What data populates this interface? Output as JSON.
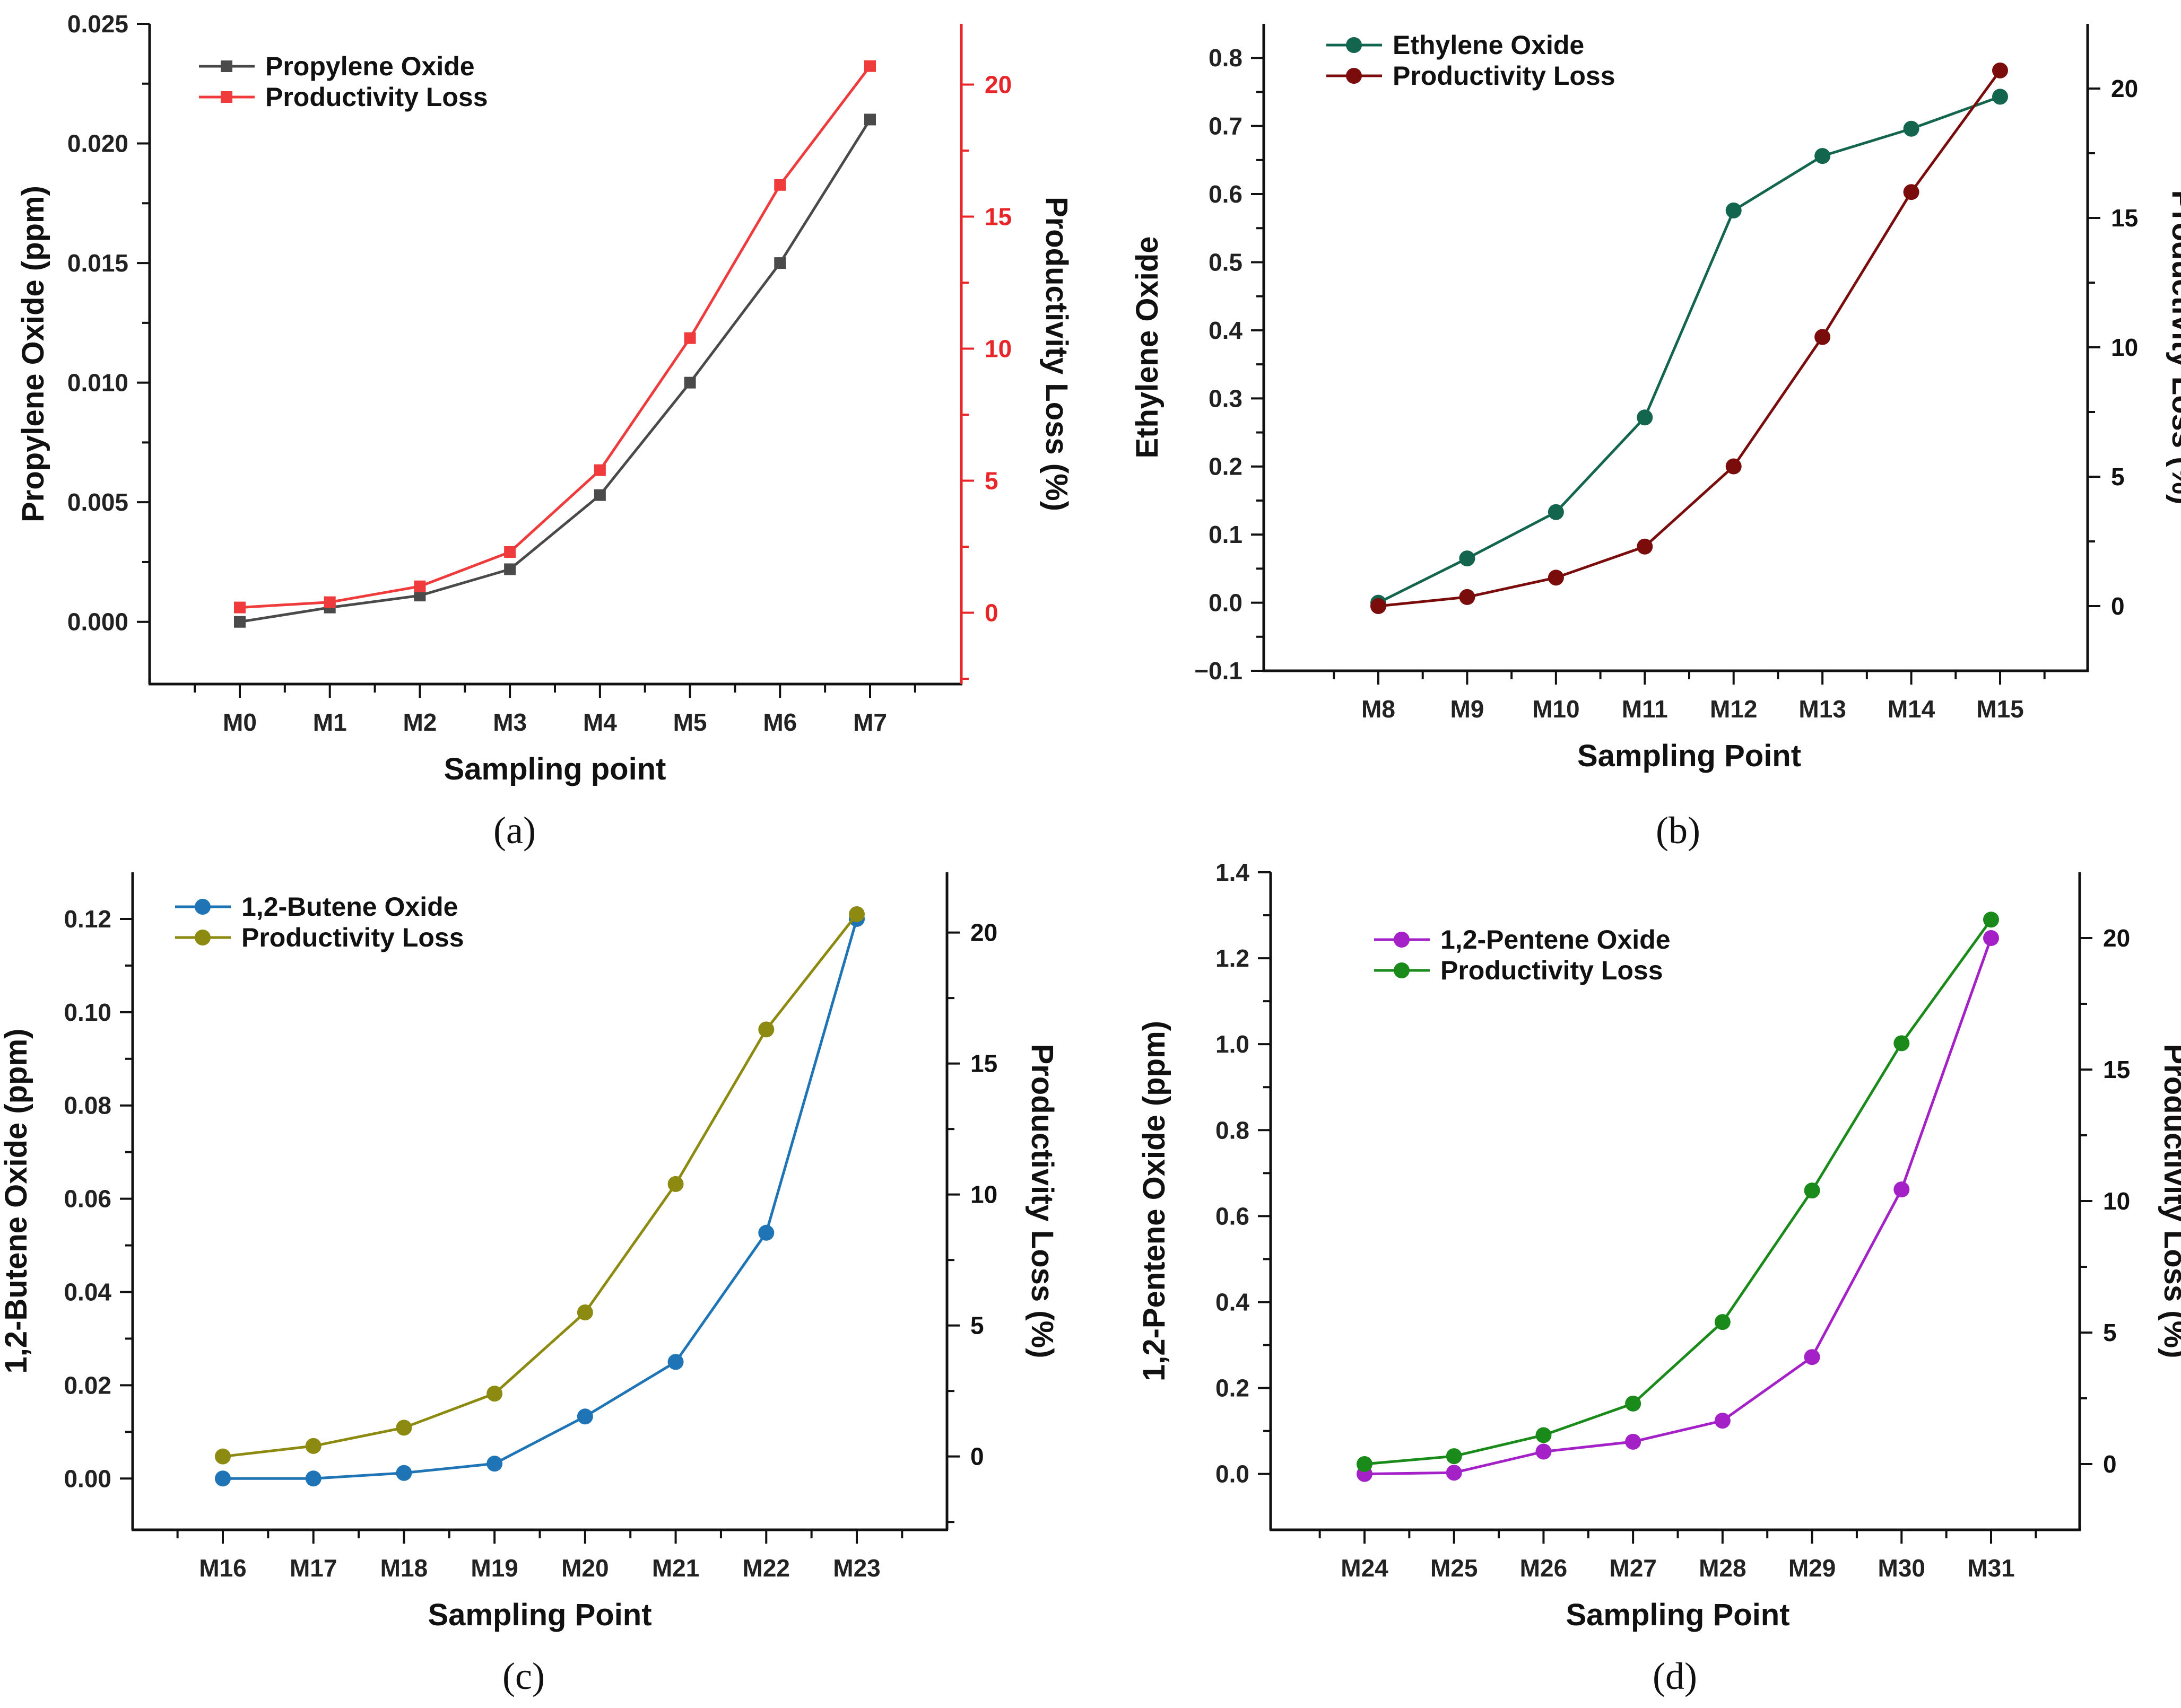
{
  "chart_data": [
    {
      "id": "a",
      "type": "line",
      "caption": "(a)",
      "xlabel": "Sampling point",
      "ylabel": "Propylene Oxide (ppm)",
      "y2label": "Productivity Loss (%)",
      "categories": [
        "M0",
        "M1",
        "M2",
        "M3",
        "M4",
        "M5",
        "M6",
        "M7"
      ],
      "ylim": [
        -0.0026,
        0.025
      ],
      "yticks": [
        0.0,
        0.005,
        0.01,
        0.015,
        0.02,
        0.025
      ],
      "ytick_labels": [
        "0.000",
        "0.005",
        "0.010",
        "0.015",
        "0.020",
        "0.025"
      ],
      "y2lim": [
        -2.7,
        22.3
      ],
      "y2ticks": [
        0,
        5,
        10,
        15,
        20
      ],
      "y2tick_labels": [
        "0",
        "5",
        "10",
        "15",
        "20"
      ],
      "right_axis_color": "#e8262a",
      "grid": false,
      "legend_position": "top-left",
      "marker": "square",
      "series": [
        {
          "name": "Propylene Oxide",
          "axis": "left",
          "color": "#4a4a4a",
          "values": [
            0.0,
            0.0006,
            0.0011,
            0.0022,
            0.0053,
            0.01,
            0.015,
            0.021
          ]
        },
        {
          "name": "Productivity Loss",
          "axis": "right",
          "color": "#ef3b3b",
          "values": [
            0.2,
            0.4,
            1.0,
            2.3,
            5.4,
            10.4,
            16.2,
            20.7
          ]
        }
      ]
    },
    {
      "id": "b",
      "type": "line",
      "caption": "(b)",
      "xlabel": "Sampling Point",
      "ylabel": "Ethylene Oxide",
      "y2label": "Productivity Loss (%)",
      "categories": [
        "M8",
        "M9",
        "M10",
        "M11",
        "M12",
        "M13",
        "M14",
        "M15"
      ],
      "ylim": [
        -0.1,
        0.85
      ],
      "yticks": [
        -0.1,
        0.0,
        0.1,
        0.2,
        0.3,
        0.4,
        0.5,
        0.6,
        0.7,
        0.8
      ],
      "ytick_labels": [
        "−0.1",
        "0.0",
        "0.1",
        "0.2",
        "0.3",
        "0.4",
        "0.5",
        "0.6",
        "0.7",
        "0.8"
      ],
      "y2lim": [
        -2.5,
        22.5
      ],
      "y2ticks": [
        0,
        5,
        10,
        15,
        20
      ],
      "y2tick_labels": [
        "0",
        "5",
        "10",
        "15",
        "20"
      ],
      "right_axis_color": "#111111",
      "grid": false,
      "legend_position": "top-left",
      "marker": "circle",
      "series": [
        {
          "name": "Ethylene Oxide",
          "axis": "left",
          "color": "#13664d",
          "values": [
            0.0,
            0.065,
            0.133,
            0.272,
            0.576,
            0.656,
            0.696,
            0.743
          ]
        },
        {
          "name": "Productivity Loss",
          "axis": "right",
          "color": "#7a0c0c",
          "values": [
            0.0,
            0.35,
            1.1,
            2.3,
            5.4,
            10.4,
            16.0,
            20.7
          ]
        }
      ]
    },
    {
      "id": "c",
      "type": "line",
      "caption": "(c)",
      "xlabel": "Sampling Point",
      "ylabel": "1,2-Butene Oxide (ppm)",
      "y2label": "Productivity Loss (%)",
      "categories": [
        "M16",
        "M17",
        "M18",
        "M19",
        "M20",
        "M21",
        "M22",
        "M23"
      ],
      "ylim": [
        -0.011,
        0.13
      ],
      "yticks": [
        0.0,
        0.02,
        0.04,
        0.06,
        0.08,
        0.1,
        0.12
      ],
      "ytick_labels": [
        "0.00",
        "0.02",
        "0.04",
        "0.06",
        "0.08",
        "0.10",
        "0.12"
      ],
      "y2lim": [
        -2.8,
        22.3
      ],
      "y2ticks": [
        0,
        5,
        10,
        15,
        20
      ],
      "y2tick_labels": [
        "0",
        "5",
        "10",
        "15",
        "20"
      ],
      "right_axis_color": "#111111",
      "grid": false,
      "legend_position": "top-left",
      "marker": "circle",
      "series": [
        {
          "name": "1,2-Butene Oxide",
          "axis": "left",
          "color": "#1f74b5",
          "values": [
            0.0,
            0.0,
            0.0012,
            0.0032,
            0.0133,
            0.025,
            0.0527,
            0.12
          ]
        },
        {
          "name": "Productivity Loss",
          "axis": "right",
          "color": "#8c8a10",
          "values": [
            0.0,
            0.4,
            1.1,
            2.4,
            5.5,
            10.4,
            16.3,
            20.7
          ]
        }
      ]
    },
    {
      "id": "d",
      "type": "line",
      "caption": "(d)",
      "xlabel": "Sampling Point",
      "ylabel": "1,2-Pentene Oxide (ppm)",
      "y2label": "Productivity Loss (%)",
      "categories": [
        "M24",
        "M25",
        "M26",
        "M27",
        "M28",
        "M29",
        "M30",
        "M31"
      ],
      "ylim": [
        -0.13,
        1.4
      ],
      "yticks": [
        0.0,
        0.2,
        0.4,
        0.6,
        0.8,
        1.0,
        1.2,
        1.4
      ],
      "ytick_labels": [
        "0.0",
        "0.2",
        "0.4",
        "0.6",
        "0.8",
        "1.0",
        "1.2",
        "1.4"
      ],
      "y2lim": [
        -2.5,
        22.5
      ],
      "y2ticks": [
        0,
        5,
        10,
        15,
        20
      ],
      "y2tick_labels": [
        "0",
        "5",
        "10",
        "15",
        "20"
      ],
      "right_axis_color": "#111111",
      "grid": false,
      "legend_position": "top-left",
      "marker": "circle",
      "series": [
        {
          "name": "1,2-Pentene Oxide",
          "axis": "left",
          "color": "#a420c7",
          "values": [
            0.0,
            0.003,
            0.052,
            0.075,
            0.124,
            0.272,
            0.662,
            1.247
          ]
        },
        {
          "name": "Productivity Loss",
          "axis": "right",
          "color": "#1a8a1a",
          "values": [
            0.0,
            0.3,
            1.1,
            2.3,
            5.4,
            10.4,
            16.0,
            20.7
          ]
        }
      ]
    }
  ]
}
